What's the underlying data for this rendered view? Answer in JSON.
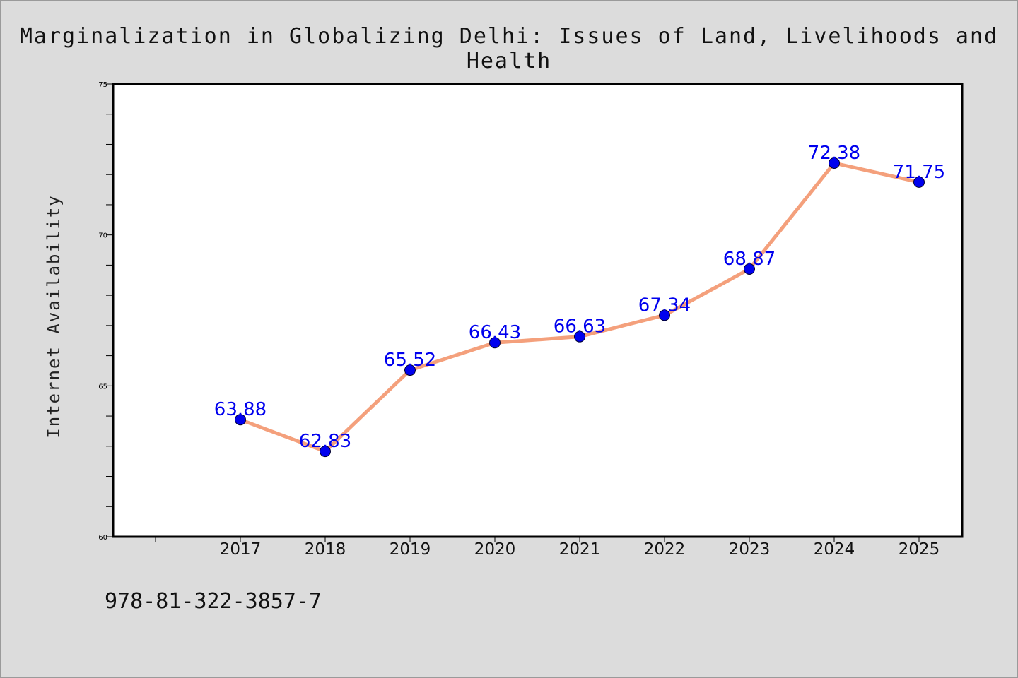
{
  "page": {
    "title": "Marginalization in Globalizing Delhi: Issues of Land, Livelihoods and Health",
    "footer_code": "978-81-322-3857-7"
  },
  "chart_data": {
    "type": "line",
    "title": "Marginalization in Globalizing Delhi: Issues of Land, Livelihoods and Health",
    "xlabel": "",
    "ylabel": "Internet Availability",
    "categories": [
      "2017",
      "2018",
      "2019",
      "2020",
      "2021",
      "2022",
      "2023",
      "2024",
      "2025"
    ],
    "series": [
      {
        "values": [
          63.88,
          62.83,
          65.52,
          66.43,
          66.63,
          67.34,
          68.87,
          72.38,
          71.75
        ],
        "line_color": "#f4a07c",
        "marker_color": "#0000ee"
      }
    ],
    "data_labels": [
      "63.88",
      "62.83",
      "65.52",
      "66.43",
      "66.63",
      "67.34",
      "68.87",
      "72.38",
      "71.75"
    ],
    "ylim": [
      60,
      75
    ],
    "yticks": [
      60,
      65,
      70,
      75
    ],
    "x_extra_leading_slot": true,
    "grid": false,
    "legend": "none",
    "label_color": "#0000ee",
    "background": "#dcdcdc",
    "plot_background": "#ffffff"
  }
}
